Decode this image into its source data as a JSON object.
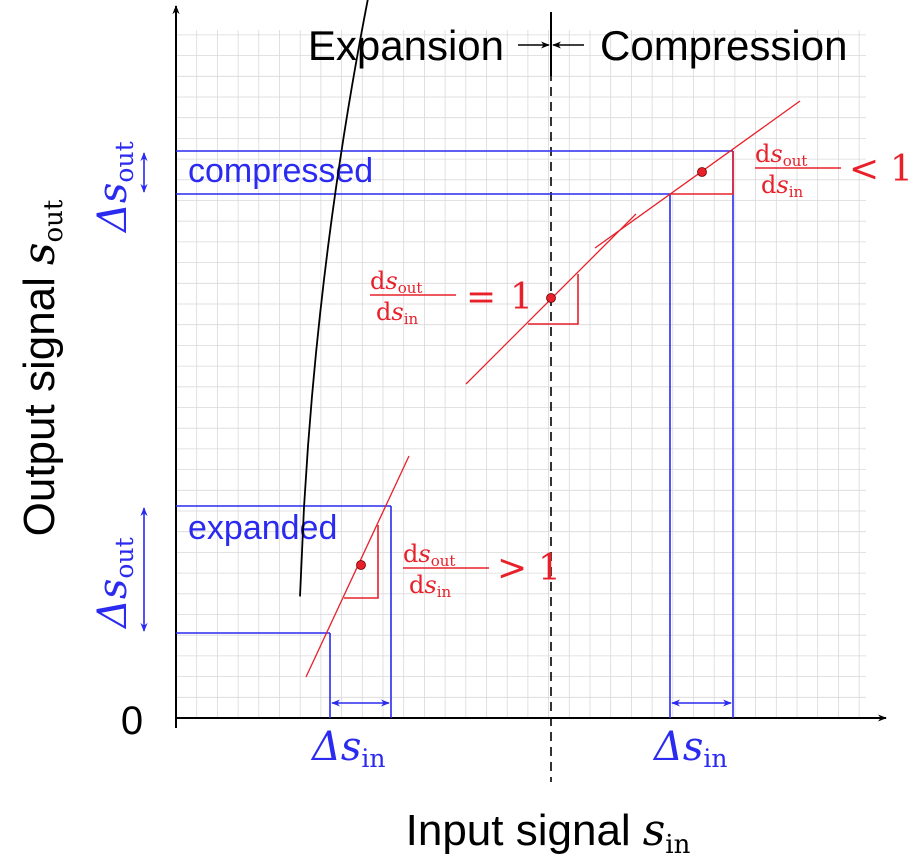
{
  "labels": {
    "expansion": "Expansion",
    "compression": "Compression",
    "compressed": "compressed",
    "expanded": "expanded",
    "zero": "0",
    "x_axis_text": "Input signal",
    "y_axis_text": "Output signal",
    "s_symbol": "s",
    "in_sub": "in",
    "out_sub": "out",
    "delta_symbol": "Δ",
    "d_symbol": "d",
    "gt": ">",
    "eq": "=",
    "lt": "<",
    "one": "1"
  },
  "colors": {
    "curve": "#000000",
    "blue": "#2a2af0",
    "red": "#e8202a",
    "grid": "#d9d9d9"
  },
  "icons": {
    "axis_arrows": "arrow-head-icon",
    "double_arrows": "double-arrow-icon"
  }
}
